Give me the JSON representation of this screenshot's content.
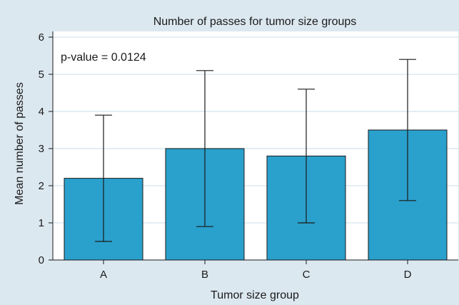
{
  "chart_data": {
    "type": "bar",
    "title": "Number of passes for tumor size groups",
    "xlabel": "Tumor size group",
    "ylabel": "Mean number of passes",
    "annotation": "p-value = 0.0124",
    "categories": [
      "A",
      "B",
      "C",
      "D"
    ],
    "values": [
      2.2,
      3.0,
      2.8,
      3.5
    ],
    "error_bars": [
      {
        "low": 0.5,
        "high": 3.9
      },
      {
        "low": 0.9,
        "high": 5.1
      },
      {
        "low": 1.0,
        "high": 4.6
      },
      {
        "low": 1.6,
        "high": 5.4
      }
    ],
    "ylim": [
      0,
      6
    ],
    "yticks": [
      0,
      1,
      2,
      3,
      4,
      5,
      6
    ],
    "grid": "horizontal",
    "colors": {
      "background": "#dce8f0",
      "plot_background": "#ffffff",
      "bar_fill": "#2aa0cc",
      "bar_stroke": "#1a1a1a",
      "grid": "#dce8f0"
    }
  }
}
